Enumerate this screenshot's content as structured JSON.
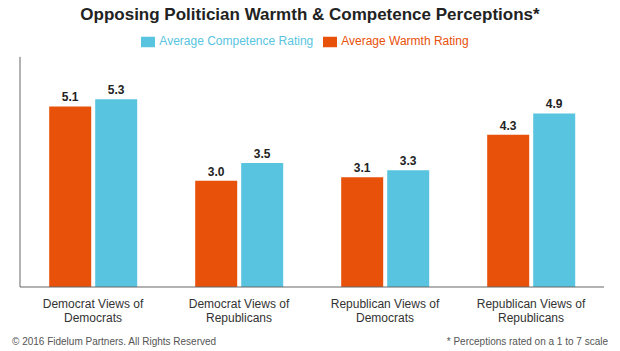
{
  "chart_data": {
    "type": "bar",
    "title": "Opposing Politician Warmth & Competence Perceptions*",
    "categories": [
      "Democrat Views of\nDemocrats",
      "Democrat Views of\nRepublicans",
      "Republican Views of\nDemocrats",
      "Republican Views of\nRepublicans"
    ],
    "series": [
      {
        "name": "Average Warmth Rating",
        "color": "#E8510A",
        "values": [
          5.1,
          3.0,
          3.1,
          4.3
        ],
        "value_labels": [
          "5.1",
          "3.0",
          "3.1",
          "4.3"
        ]
      },
      {
        "name": "Average Competence Rating",
        "color": "#58C4E0",
        "values": [
          5.3,
          3.5,
          3.3,
          4.9
        ],
        "value_labels": [
          "5.3",
          "3.5",
          "3.3",
          "4.9"
        ]
      }
    ],
    "ylim": [
      0,
      6.5
    ],
    "tick_labels": "x",
    "data_labels": true,
    "grid": false,
    "legend": "top",
    "annotations": [
      "© 2016 Fidelum Partners. All Rights Reserved",
      "* Perceptions rated on a 1 to 7 scale"
    ]
  }
}
